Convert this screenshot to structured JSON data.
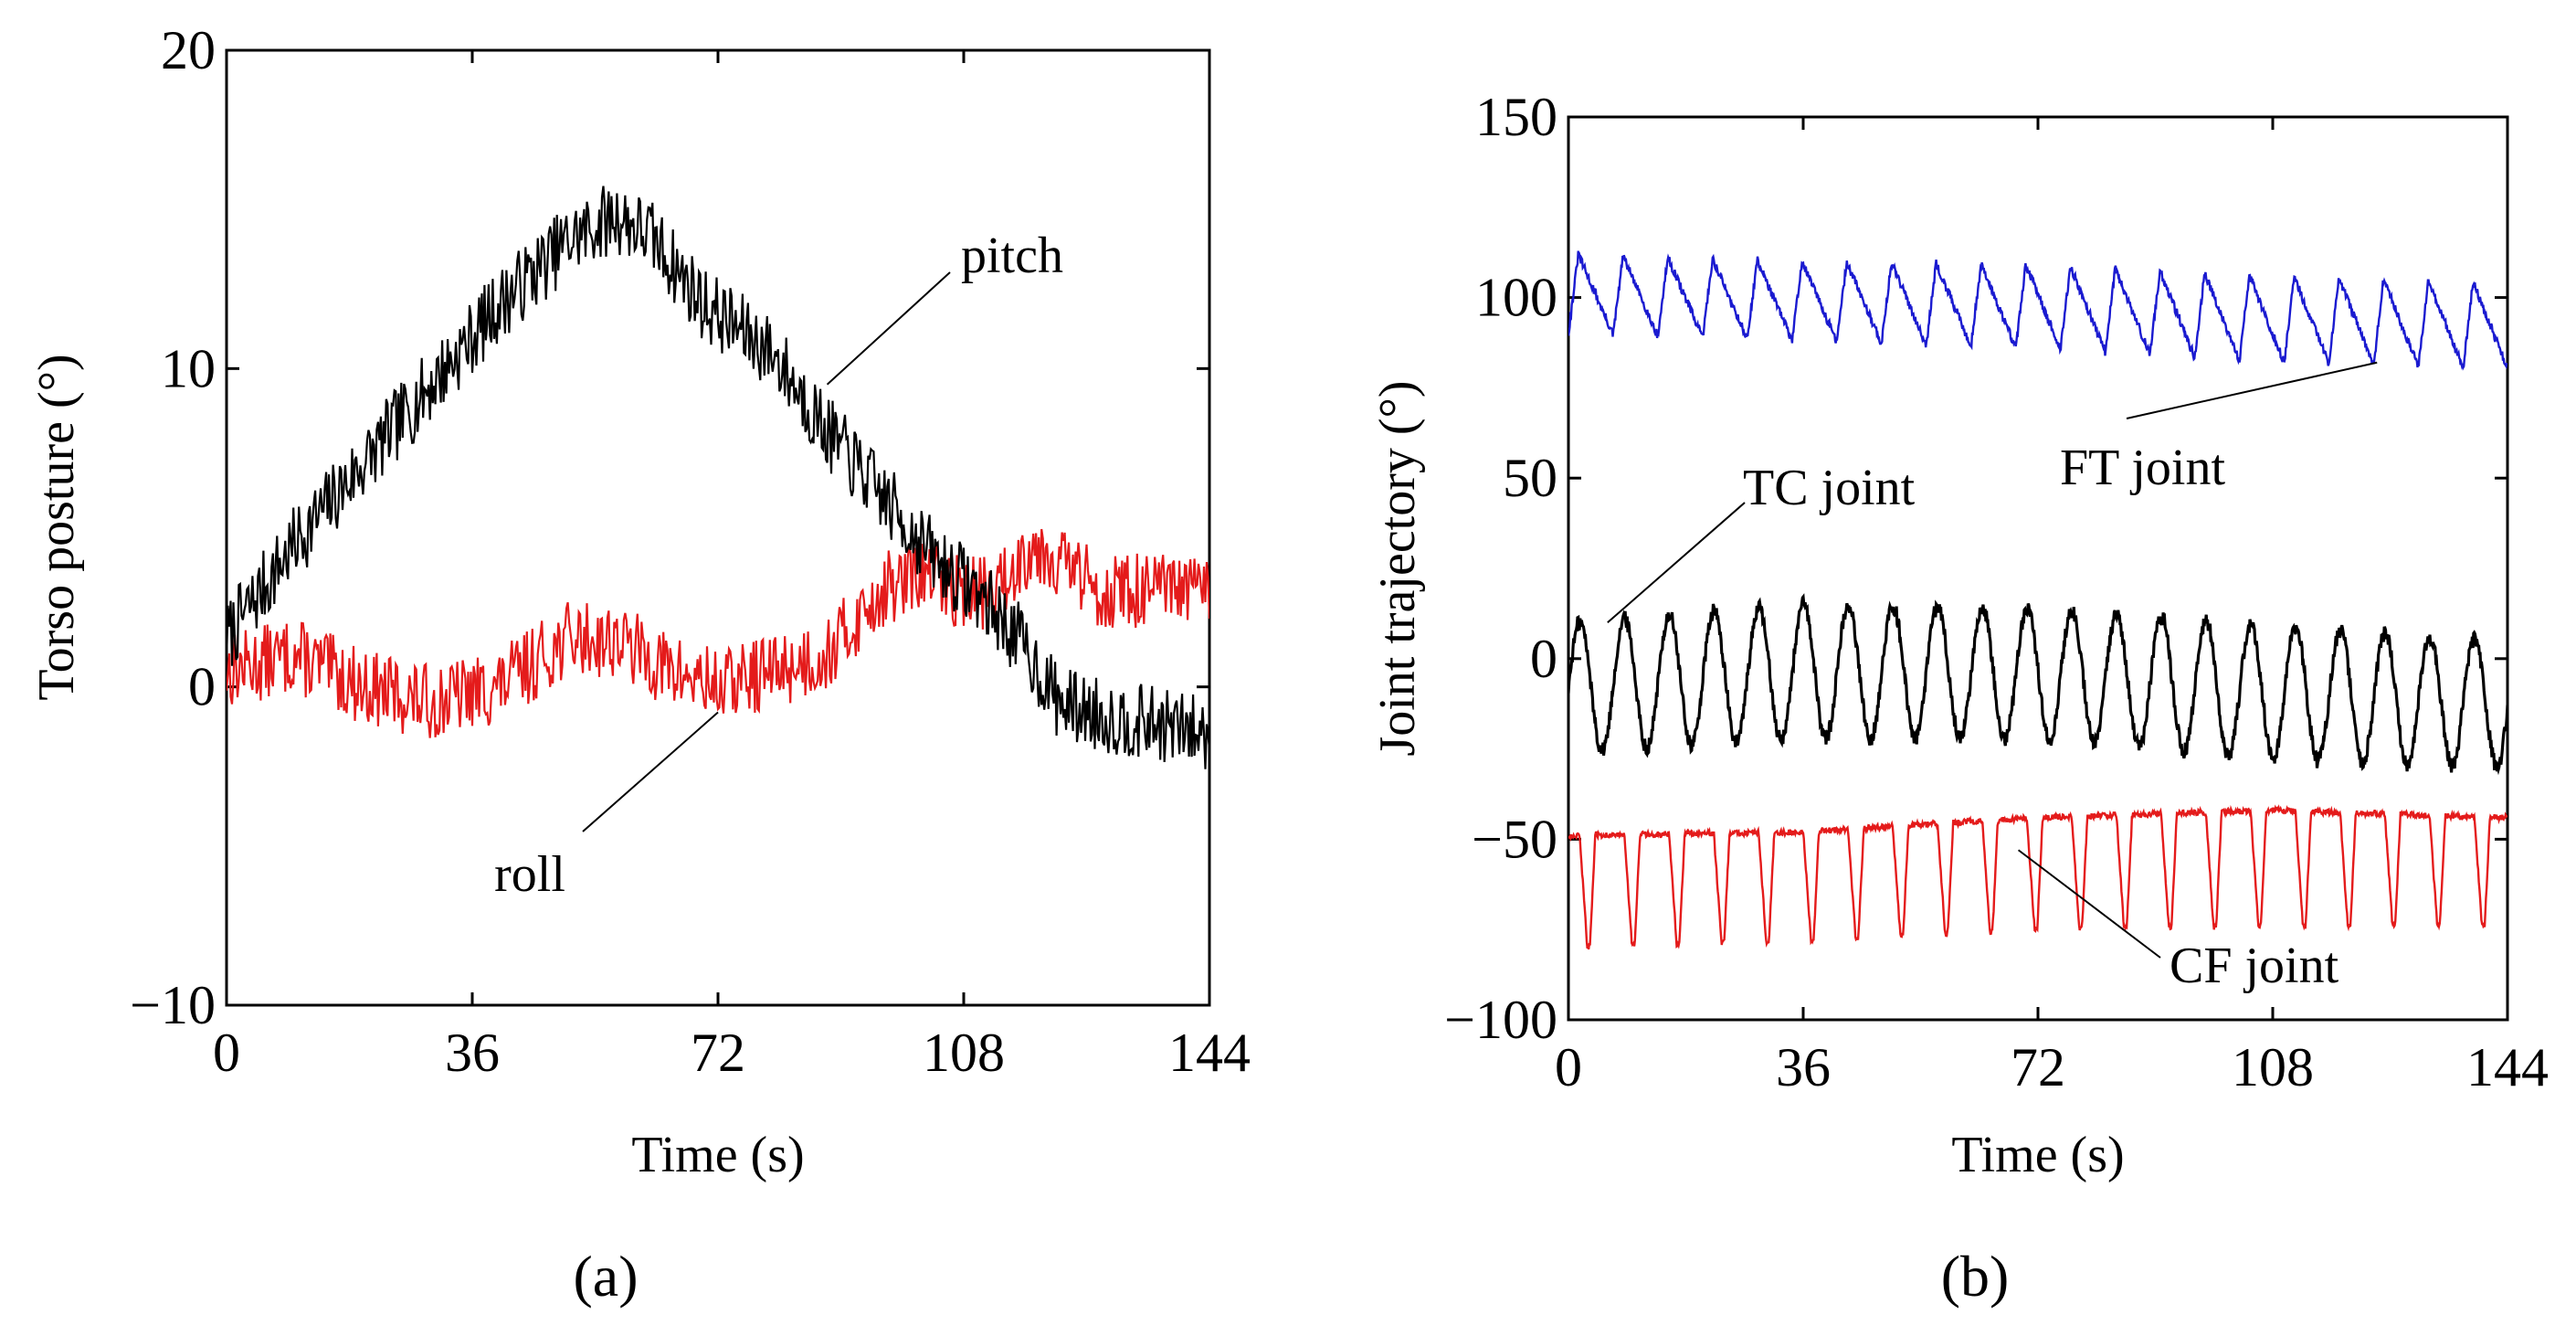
{
  "figure": {
    "panels": [
      "(a)",
      "(b)"
    ]
  },
  "chart_data": [
    {
      "type": "line",
      "panel": "(a)",
      "title": "",
      "xlabel": "Time (s)",
      "ylabel": "Torso posture (°)",
      "xlim": [
        0,
        144
      ],
      "ylim": [
        -10,
        20
      ],
      "xticks": [
        0,
        36,
        72,
        108,
        144
      ],
      "yticks": [
        -10,
        0,
        10,
        20
      ],
      "xtick_labels": [
        "0",
        "36",
        "72",
        "108",
        "144"
      ],
      "ytick_labels": [
        "−10",
        "0",
        "10",
        "20"
      ],
      "noise_amplitude": 1.2,
      "series": [
        {
          "name": "pitch",
          "color": "#000000",
          "x": [
            0,
            10,
            20,
            30,
            40,
            50,
            57,
            62,
            70,
            80,
            88,
            96,
            104,
            110,
            116,
            122,
            130,
            137,
            144
          ],
          "y": [
            1.5,
            4.5,
            7,
            9.5,
            12,
            14,
            14.8,
            14.2,
            12,
            10.5,
            8,
            6,
            4,
            3,
            1.5,
            -0.5,
            -1,
            -1.2,
            -1.5
          ]
        },
        {
          "name": "roll",
          "color": "#e41b1b",
          "x": [
            0,
            10,
            20,
            30,
            40,
            50,
            57,
            65,
            72,
            80,
            88,
            92,
            96,
            102,
            108,
            113,
            118,
            122,
            128,
            136,
            144
          ],
          "y": [
            0.5,
            1,
            0,
            -0.5,
            0,
            1.5,
            1.5,
            0.5,
            0,
            0.5,
            1,
            2,
            3,
            3.5,
            3,
            3,
            4.5,
            4,
            3,
            3,
            3
          ]
        }
      ],
      "annotations": [
        {
          "text": "pitch",
          "points_to": [
            88,
            9.5
          ]
        },
        {
          "text": "roll",
          "points_to": [
            72,
            -0.8
          ]
        }
      ]
    },
    {
      "type": "line",
      "panel": "(b)",
      "title": "",
      "xlabel": "Time (s)",
      "ylabel": "Joint trajectory (°)",
      "xlim": [
        0,
        144
      ],
      "ylim": [
        -100,
        150
      ],
      "xticks": [
        0,
        36,
        72,
        108,
        144
      ],
      "yticks": [
        -100,
        -50,
        0,
        50,
        100,
        150
      ],
      "xtick_labels": [
        "0",
        "36",
        "72",
        "108",
        "144"
      ],
      "ytick_labels": [
        "−100",
        "−50",
        "0",
        "50",
        "100",
        "150"
      ],
      "period_s": 6.86,
      "series": [
        {
          "name": "FT joint",
          "color": "#1a1ad0",
          "waveform": "sawtooth",
          "x": [
            0,
            36,
            72,
            108,
            144
          ],
          "max": [
            112,
            110,
            109,
            106,
            104
          ],
          "min": [
            90,
            88,
            86,
            82,
            80
          ]
        },
        {
          "name": "TC joint",
          "color": "#000000",
          "waveform": "sine",
          "x": [
            0,
            36,
            72,
            108,
            144
          ],
          "max": [
            10,
            15,
            14,
            9,
            5
          ],
          "min": [
            -26,
            -22,
            -22,
            -28,
            -30
          ]
        },
        {
          "name": "CF joint",
          "color": "#e41b1b",
          "waveform": "dip",
          "x": [
            0,
            36,
            72,
            108,
            144
          ],
          "max": [
            -49,
            -48,
            -44,
            -42,
            -44
          ],
          "min": [
            -80,
            -78,
            -75,
            -74,
            -74
          ]
        }
      ],
      "annotations": [
        {
          "text": "FT joint",
          "points_to": [
            124,
            82
          ]
        },
        {
          "text": "TC joint",
          "points_to": [
            6,
            10
          ]
        },
        {
          "text": "CF joint",
          "points_to": [
            69,
            -53
          ]
        }
      ]
    }
  ]
}
